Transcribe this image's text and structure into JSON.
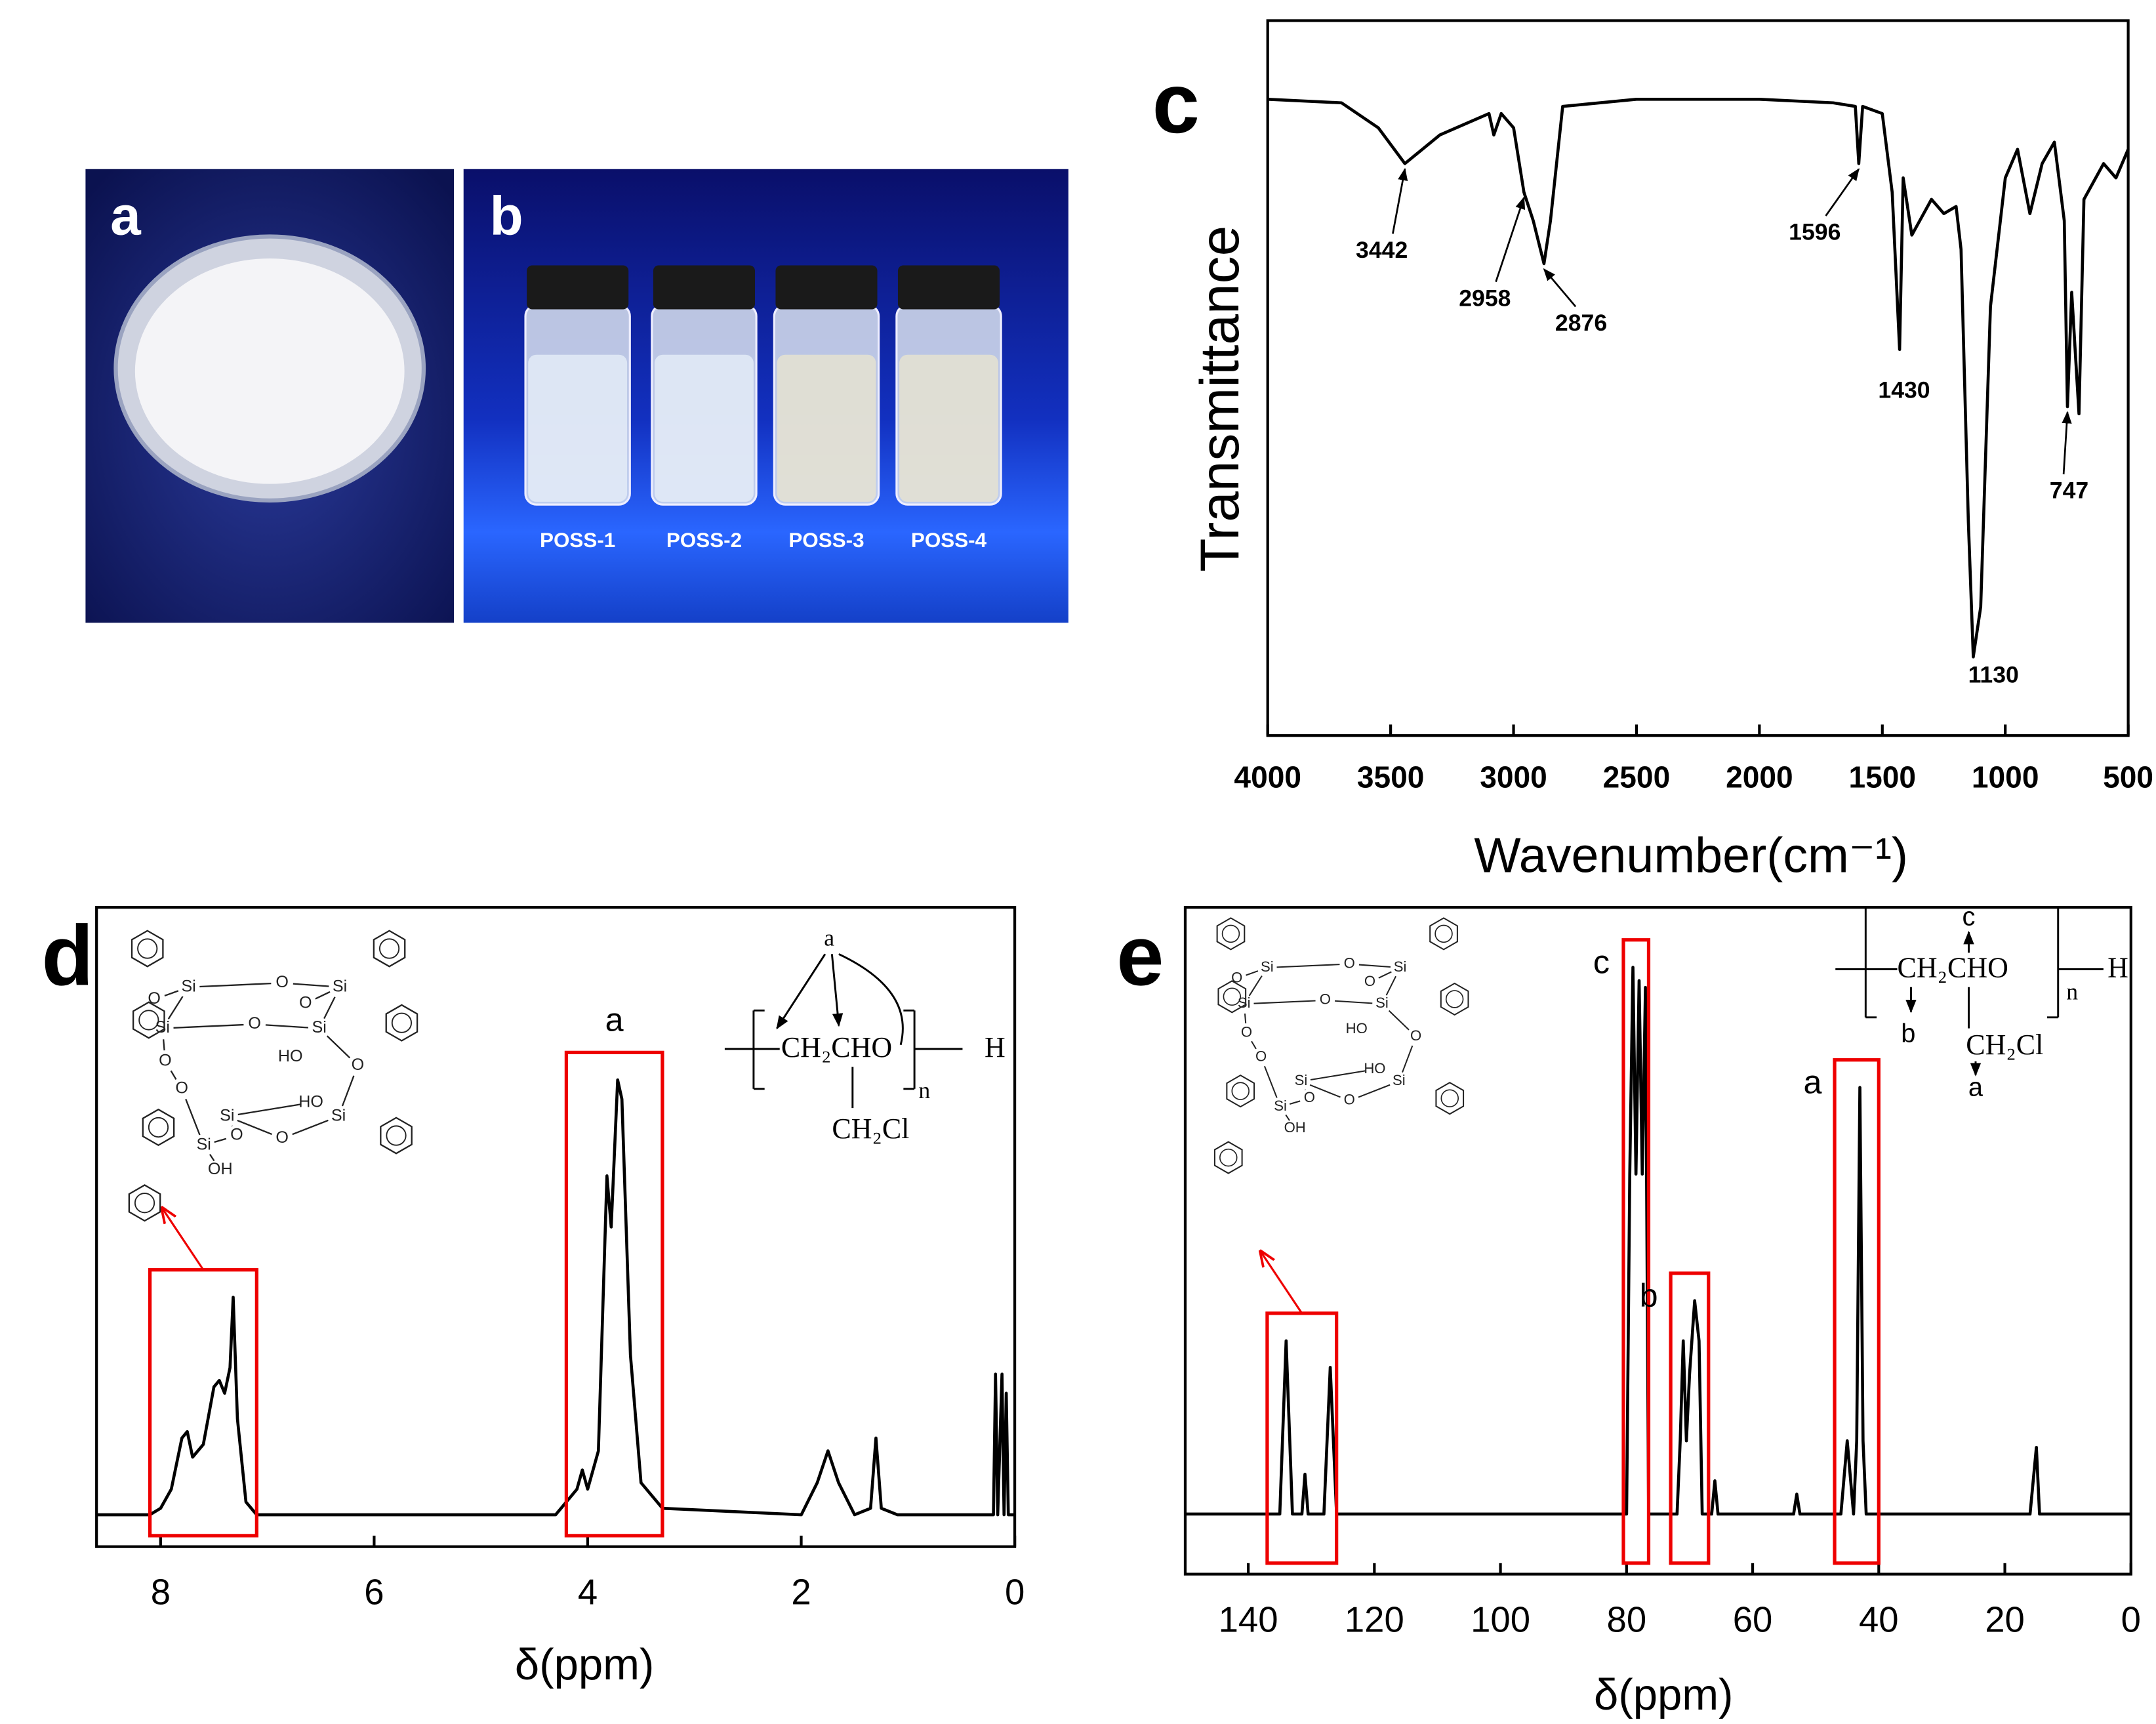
{
  "photos": [
    {
      "label": "a"
    },
    {
      "label": "b",
      "vials": [
        "POSS-1",
        "POSS-2",
        "POSS-3",
        "POSS-4"
      ]
    }
  ],
  "chart_data": [
    {
      "type": "line",
      "panel": "c",
      "xlabel": "Wavenumber(cm⁻¹)",
      "ylabel": "Transmittance",
      "color": "#000000",
      "x": [
        4000,
        3700,
        3550,
        3442,
        3300,
        3100,
        3080,
        3050,
        3000,
        2958,
        2920,
        2876,
        2850,
        2800,
        2500,
        2000,
        1700,
        1610,
        1596,
        1580,
        1500,
        1460,
        1430,
        1415,
        1380,
        1300,
        1250,
        1200,
        1180,
        1150,
        1130,
        1100,
        1060,
        1000,
        950,
        900,
        850,
        800,
        760,
        747,
        730,
        700,
        680,
        600,
        550,
        500
      ],
      "values": [
        89,
        88.5,
        85,
        80,
        84,
        87,
        84,
        87,
        85,
        76,
        72,
        66,
        72,
        88,
        89,
        89,
        88.5,
        88,
        80,
        88,
        87,
        76,
        54,
        78,
        70,
        75,
        73,
        74,
        68,
        30,
        11,
        18,
        60,
        78,
        82,
        73,
        80,
        83,
        72,
        46,
        62,
        45,
        75,
        80,
        78,
        82
      ],
      "xlim": [
        4000,
        500
      ],
      "xticks": [
        4000,
        3500,
        3000,
        2500,
        2000,
        1500,
        1000,
        500
      ],
      "ylim": [
        0,
        100
      ],
      "annotations": [
        {
          "label": "3442",
          "x": 3442
        },
        {
          "label": "2958",
          "x": 2958
        },
        {
          "label": "2876",
          "x": 2876
        },
        {
          "label": "1596",
          "x": 1596
        },
        {
          "label": "1430",
          "x": 1430
        },
        {
          "label": "1130",
          "x": 1130
        },
        {
          "label": "747",
          "x": 747
        }
      ]
    },
    {
      "type": "line",
      "panel": "d",
      "xlabel": "δ(ppm)",
      "color": "#000000",
      "x": [
        8.6,
        8.1,
        8.0,
        7.9,
        7.8,
        7.75,
        7.7,
        7.6,
        7.5,
        7.45,
        7.4,
        7.35,
        7.32,
        7.28,
        7.2,
        7.1,
        4.3,
        4.1,
        4.05,
        4.0,
        3.9,
        3.82,
        3.78,
        3.72,
        3.68,
        3.6,
        3.5,
        3.3,
        2.0,
        1.85,
        1.75,
        1.65,
        1.5,
        1.35,
        1.3,
        1.25,
        1.1,
        0.2,
        0.18,
        0.16,
        0.12,
        0.1,
        0.08,
        0.06,
        0
      ],
      "values": [
        5,
        5,
        6,
        9,
        17,
        18,
        14,
        16,
        25,
        26,
        24,
        28,
        39,
        20,
        7,
        5,
        5,
        9,
        12,
        9,
        15,
        58,
        50,
        73,
        70,
        30,
        10,
        6,
        5,
        10,
        15,
        10,
        5,
        6,
        17,
        6,
        5,
        5,
        27,
        5,
        27,
        5,
        24,
        5,
        5
      ],
      "xlim": [
        8.6,
        0
      ],
      "xticks": [
        8,
        6,
        4,
        2,
        0
      ],
      "ylim": [
        0,
        100
      ],
      "highlights": [
        {
          "range": [
            8.1,
            7.1
          ]
        },
        {
          "range": [
            4.2,
            3.3
          ],
          "label": "a"
        }
      ],
      "structure": [
        "O",
        "Si",
        "O",
        "O",
        "Si",
        "Si",
        "O",
        "Si",
        "HO",
        "O",
        "O",
        "O",
        "Si",
        "HO",
        "Si",
        "Si",
        "O",
        "O",
        "OH"
      ],
      "formula": [
        "a",
        "CH₂CHO",
        "n",
        "H",
        "CH₂Cl"
      ]
    },
    {
      "type": "line",
      "panel": "e",
      "xlabel": "δ(ppm)",
      "color": "#000000",
      "x": [
        150,
        135,
        134,
        133,
        131.5,
        131,
        130.5,
        128,
        127,
        126,
        80,
        79.5,
        79,
        78.5,
        78,
        77.5,
        77,
        76.5,
        72,
        71.5,
        71,
        70.5,
        70,
        69.2,
        68.5,
        68,
        66.5,
        66,
        65.5,
        53.5,
        53,
        52.5,
        46,
        45,
        44,
        43.5,
        43,
        42.5,
        42,
        16,
        15,
        14.5,
        0
      ],
      "values": [
        9,
        9,
        35,
        9,
        9,
        15,
        9,
        9,
        31,
        9,
        9,
        60,
        91,
        60,
        89,
        60,
        88,
        9,
        9,
        20,
        35,
        20,
        30,
        41,
        35,
        9,
        9,
        14,
        9,
        9,
        12,
        9,
        9,
        20,
        9,
        20,
        73,
        20,
        9,
        9,
        19,
        9,
        9
      ],
      "xlim": [
        150,
        0
      ],
      "xticks": [
        140,
        120,
        100,
        80,
        60,
        40,
        20,
        0
      ],
      "ylim": [
        0,
        100
      ],
      "highlights": [
        {
          "range": [
            137,
            126
          ]
        },
        {
          "range": [
            80.5,
            76.5
          ],
          "label": "c"
        },
        {
          "range": [
            73,
            67
          ],
          "label": "b"
        },
        {
          "range": [
            47,
            40
          ],
          "label": "a"
        }
      ],
      "structure": [
        "O",
        "Si",
        "O",
        "O",
        "Si",
        "Si",
        "O",
        "Si",
        "HO",
        "O",
        "O",
        "O",
        "Si",
        "HO",
        "Si",
        "Si",
        "O",
        "O",
        "OH"
      ],
      "formula": [
        "c",
        "CH₂CHO",
        "n",
        "H",
        "b",
        "CH₂Cl",
        "a"
      ]
    }
  ]
}
